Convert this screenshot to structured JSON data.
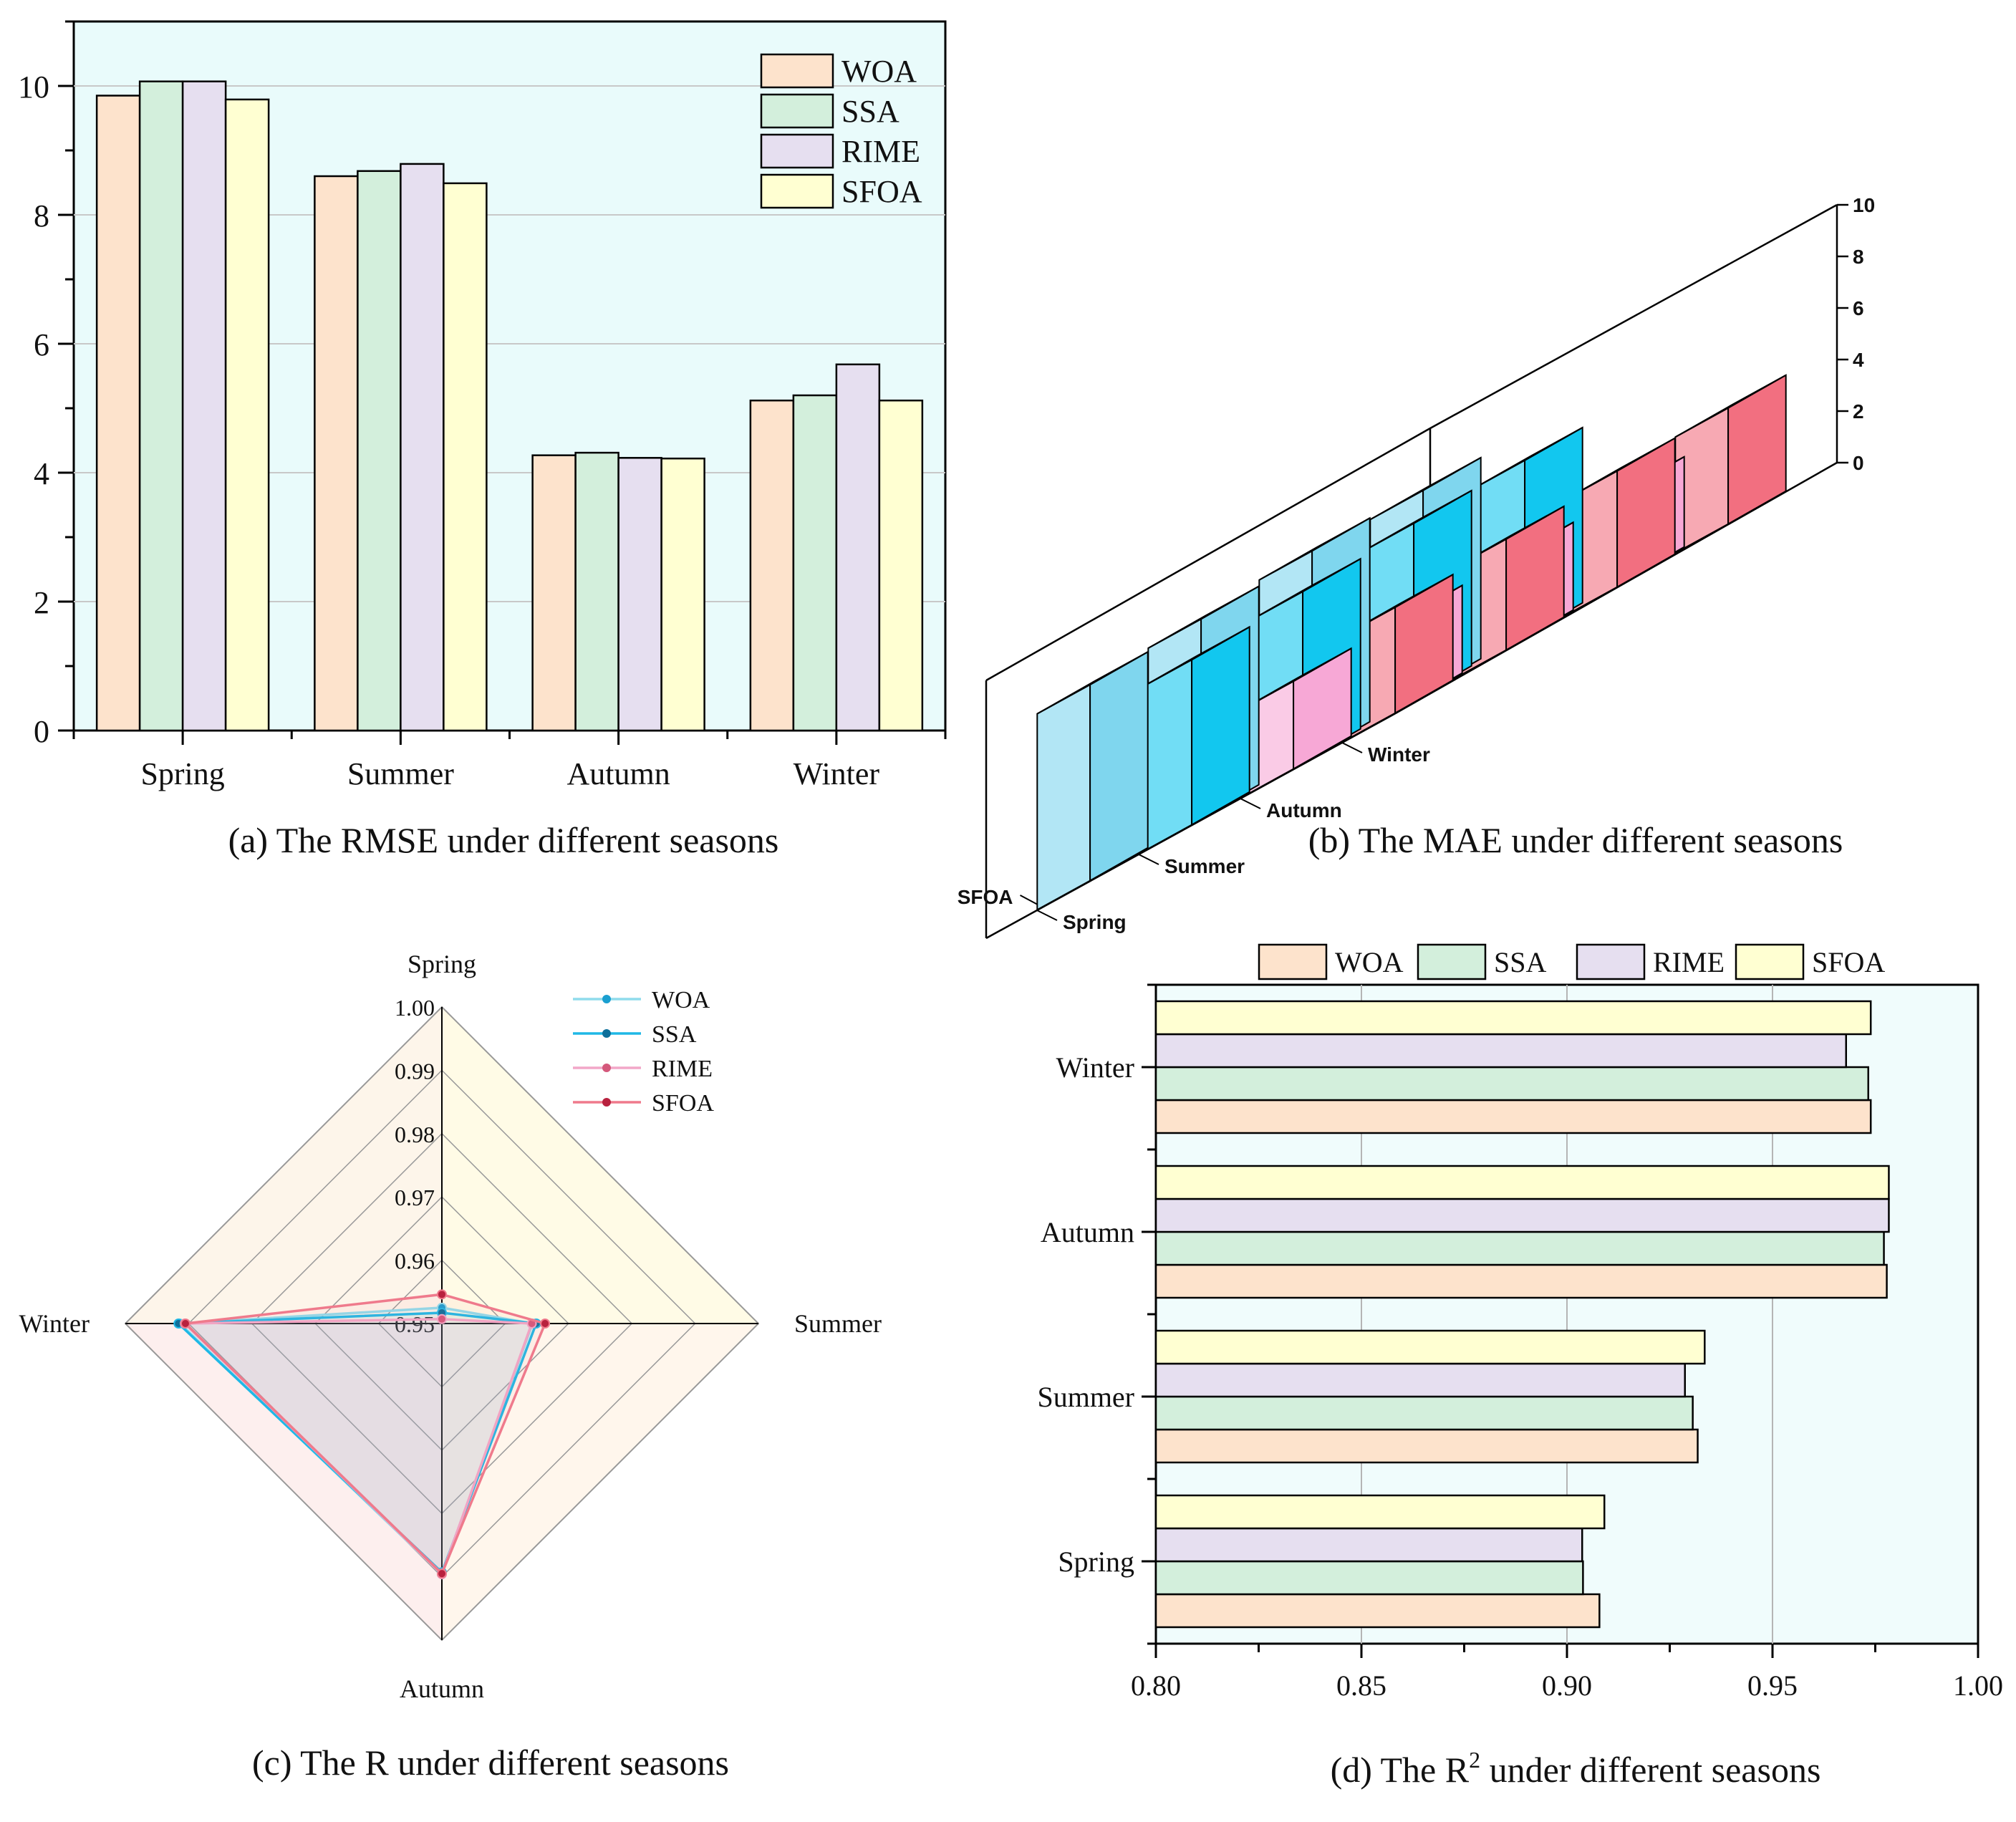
{
  "colors": {
    "WOA": "#fde3cc",
    "SSA": "#d3efdc",
    "RIME": "#e6dff0",
    "SFOA": "#ffffd2",
    "panel_a_bg": "#e9fbfb",
    "panel_d_bg": "#f0fcfc",
    "mae_woa": "#7fd6ee",
    "mae_ssa": "#12c7ef",
    "mae_rime": "#f7a8d6",
    "mae_sfoa": "#f26f80",
    "radar_woa": "#8fdcec",
    "radar_ssa": "#1fb8e6",
    "radar_rime": "#f2a7c8",
    "radar_sfoa": "#ef7a8c",
    "radar_dot_woa": "#1a9fd0",
    "radar_dot_ssa": "#0d6f9a",
    "radar_dot_rime": "#d4587b",
    "radar_dot_sfoa": "#b8213e"
  },
  "captions": {
    "a": "(a) The RMSE under different seasons",
    "b": "(b) The MAE under different seasons",
    "c": "(c) The R under different seasons",
    "d_prefix": "(d) The R",
    "d_sup": "2",
    "d_suffix": " under different seasons"
  },
  "chart_data": [
    {
      "type": "bar",
      "panel": "a",
      "categories": [
        "Spring",
        "Summer",
        "Autumn",
        "Winter"
      ],
      "series": [
        {
          "name": "WOA",
          "values": [
            9.85,
            8.6,
            4.27,
            5.12
          ]
        },
        {
          "name": "SSA",
          "values": [
            10.07,
            8.68,
            4.31,
            5.2
          ]
        },
        {
          "name": "RIME",
          "values": [
            10.07,
            8.79,
            4.23,
            5.68
          ]
        },
        {
          "name": "SFOA",
          "values": [
            9.79,
            8.49,
            4.22,
            5.12
          ]
        }
      ],
      "ylim": [
        0,
        11
      ],
      "yticks": [
        "0",
        "2",
        "4",
        "6",
        "8",
        "10"
      ],
      "grid": true,
      "legend": "top-right"
    },
    {
      "type": "bar",
      "subtype": "3d",
      "panel": "b",
      "algorithms": [
        "WOA",
        "SSA",
        "RIME",
        "SFOA"
      ],
      "seasons": [
        "Spring",
        "Summer",
        "Autumn",
        "Winter"
      ],
      "values": {
        "Spring": [
          7.8,
          7.9,
          7.7,
          7.6
        ],
        "Summer": [
          6.8,
          6.8,
          6.6,
          6.4
        ],
        "Autumn": [
          3.5,
          3.4,
          3.4,
          3.4
        ],
        "Winter": [
          4.5,
          4.5,
          4.3,
          4.1
        ]
      },
      "zlim": [
        0,
        10
      ],
      "zticks": [
        "0",
        "2",
        "4",
        "6",
        "8",
        "10"
      ]
    },
    {
      "type": "radar",
      "panel": "c",
      "axes": [
        "Spring",
        "Summer",
        "Autumn",
        "Winter"
      ],
      "rlim": [
        0.95,
        1.0
      ],
      "rticks": [
        "0.95",
        "0.96",
        "0.97",
        "0.98",
        "0.99",
        "1.00"
      ],
      "series": [
        {
          "name": "WOA",
          "values": [
            0.9525,
            0.9643,
            0.9896,
            0.9914
          ]
        },
        {
          "name": "SSA",
          "values": [
            0.9517,
            0.9649,
            0.9893,
            0.9916
          ]
        },
        {
          "name": "RIME",
          "values": [
            0.9507,
            0.9642,
            0.9896,
            0.9906
          ]
        },
        {
          "name": "SFOA",
          "values": [
            0.9546,
            0.9663,
            0.9895,
            0.9905
          ]
        }
      ],
      "legend": "top-right"
    },
    {
      "type": "bar",
      "orientation": "horizontal",
      "panel": "d",
      "categories": [
        "Spring",
        "Summer",
        "Autumn",
        "Winter"
      ],
      "series": [
        {
          "name": "WOA",
          "values": [
            0.9079,
            0.9318,
            0.9778,
            0.9739
          ]
        },
        {
          "name": "SSA",
          "values": [
            0.9039,
            0.9306,
            0.9771,
            0.9733
          ]
        },
        {
          "name": "RIME",
          "values": [
            0.9037,
            0.9287,
            0.9783,
            0.9679
          ]
        },
        {
          "name": "SFOA",
          "values": [
            0.9091,
            0.9335,
            0.9783,
            0.9739
          ]
        }
      ],
      "xlim": [
        0.8,
        1.0
      ],
      "xticks": [
        "0.80",
        "0.85",
        "0.90",
        "0.95",
        "1.00"
      ],
      "grid": true,
      "legend": "top"
    }
  ]
}
